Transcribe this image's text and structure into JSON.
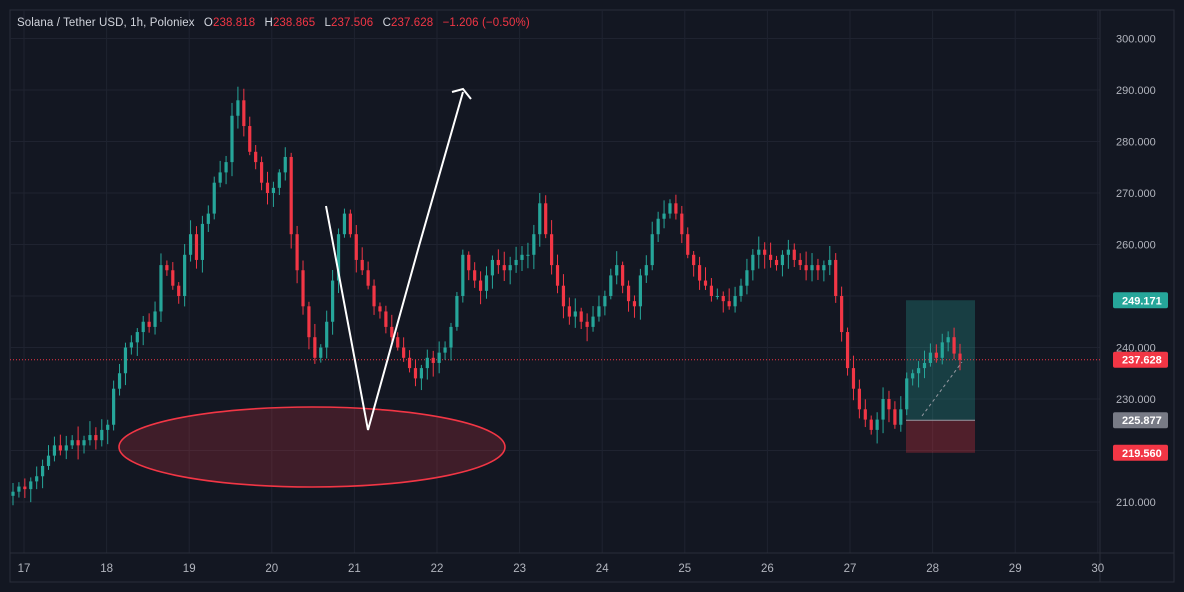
{
  "header": {
    "symbol": "Solana / Tether USD, 1h, Poloniex",
    "o_label": "O",
    "o_value": "238.818",
    "h_label": "H",
    "h_value": "238.865",
    "l_label": "L",
    "l_value": "237.506",
    "c_label": "C",
    "c_value": "237.628",
    "change": "−1.206 (−0.50%)"
  },
  "colors": {
    "background": "#131722",
    "grid": "#1f2330",
    "up": "#26a69a",
    "down": "#f23645",
    "text": "#b2b5be"
  },
  "chart_data": {
    "type": "candlestick",
    "title": "Solana / Tether USD, 1h, Poloniex",
    "xlabel": "",
    "ylabel": "",
    "ylim": [
      205,
      305
    ],
    "y_ticks": [
      "210.000",
      "220.000",
      "230.000",
      "240.000",
      "250.000",
      "260.000",
      "270.000",
      "280.000",
      "290.000",
      "300.000"
    ],
    "x_ticks": [
      "17",
      "18",
      "19",
      "20",
      "21",
      "22",
      "23",
      "24",
      "25",
      "26",
      "27",
      "28",
      "29",
      "30"
    ],
    "grid": true,
    "last_price": 237.628,
    "closes": [
      212,
      213,
      212.5,
      214,
      215,
      217,
      219,
      221,
      220,
      221,
      222,
      221,
      222,
      223,
      222,
      224,
      225,
      232,
      235,
      240,
      241,
      243,
      245,
      244,
      247,
      256,
      255,
      252,
      250,
      258,
      262,
      257,
      264,
      266,
      272,
      274,
      276,
      285,
      288,
      283,
      278,
      276,
      272,
      270,
      271,
      274,
      277,
      262,
      255,
      248,
      242,
      238,
      240,
      245,
      253,
      262,
      266,
      262,
      257,
      255,
      252,
      248,
      247,
      244,
      242,
      240,
      238,
      236,
      234,
      236,
      238,
      237,
      239,
      240,
      244,
      250,
      258,
      255,
      253,
      251,
      254,
      257,
      256,
      255,
      256,
      257,
      258,
      258,
      262,
      268,
      262,
      256,
      252,
      248,
      246,
      247,
      245,
      244,
      246,
      248,
      250,
      254,
      256,
      252,
      249,
      248,
      254,
      256,
      262,
      265,
      266,
      268,
      266,
      262,
      258,
      256,
      253,
      252,
      250,
      250,
      249,
      248,
      250,
      252,
      255,
      258,
      259,
      258,
      257,
      256,
      258,
      259,
      257,
      256,
      255,
      256,
      255,
      256,
      257,
      250,
      243,
      236,
      232,
      228,
      226,
      224,
      226,
      230,
      228,
      225,
      228,
      234,
      235,
      236,
      237,
      239,
      238,
      241,
      242,
      238.818,
      237.628
    ],
    "trade_setup": {
      "take_profit": 249.171,
      "entry": 225.877,
      "stop_loss": 219.56,
      "current": 237.628
    },
    "annotations": [
      "support ellipse",
      "V-reversal projection arrow"
    ]
  },
  "axis_badges": {
    "tp": "249.171",
    "current": "237.628",
    "entry": "225.877",
    "sl": "219.560"
  }
}
